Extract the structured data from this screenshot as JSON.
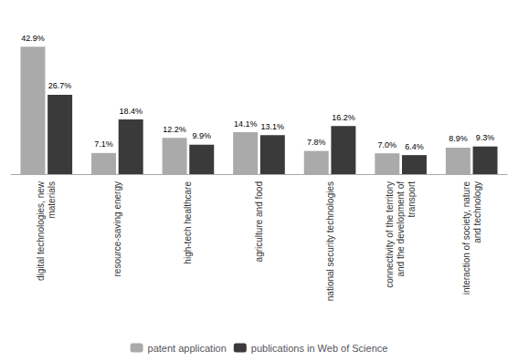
{
  "chart_data": {
    "type": "bar",
    "categories": [
      "digital technologies, new\nmaterials",
      "resource-saving energy",
      "high-tech healthcare",
      "agriculture and food",
      "national security technologies",
      "connectivity of the territory\nand the development of\ntransport",
      "interaction of society, nature\nand technology"
    ],
    "series": [
      {
        "name": "patent application",
        "color": "#aaaaaa",
        "values": [
          42.9,
          7.1,
          12.2,
          14.1,
          7.8,
          7.0,
          8.9
        ],
        "value_labels": [
          "42.9%",
          "7.1%",
          "12.2%",
          "14.1%",
          "7.8%",
          "7.0%",
          "8.9%"
        ]
      },
      {
        "name": "publications in Web of Science",
        "color": "#3a3a3a",
        "values": [
          26.7,
          18.4,
          9.9,
          13.1,
          16.2,
          6.4,
          9.3
        ],
        "value_labels": [
          "26.7%",
          "18.4%",
          "9.9%",
          "13.1%",
          "16.2%",
          "6.4%",
          "9.3%"
        ]
      }
    ],
    "ylim": [
      0,
      50
    ],
    "data_labels": true,
    "tick_labels": "x",
    "grid": false,
    "legend": "bottom"
  }
}
